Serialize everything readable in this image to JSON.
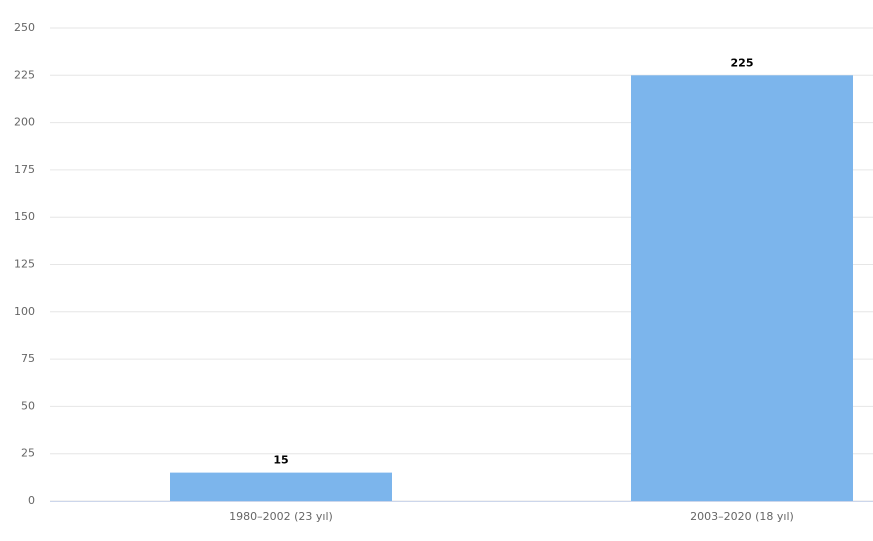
{
  "chart_data": {
    "type": "bar",
    "categories": [
      "1980–2002 (23 yıl)",
      "2003–2020 (18 yıl)"
    ],
    "values": [
      15,
      225
    ],
    "color": "#7cb5ec",
    "ylim": [
      0,
      250
    ],
    "yticks": [
      0,
      25,
      50,
      75,
      100,
      125,
      150,
      175,
      200,
      225,
      250
    ],
    "grid": true
  }
}
